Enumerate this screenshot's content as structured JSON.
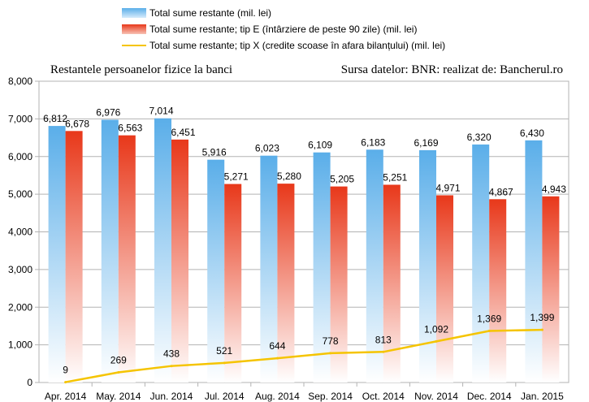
{
  "chart_data": {
    "type": "bar",
    "categories": [
      "Apr. 2014",
      "May. 2014",
      "Jun. 2014",
      "Jul. 2014",
      "Aug. 2014",
      "Sep. 2014",
      "Oct. 2014",
      "Nov. 2014",
      "Dec. 2014",
      "Jan. 2015"
    ],
    "series": [
      {
        "name": "Total sume restante (mil. lei)",
        "kind": "bar",
        "color": "#5aaee9",
        "values": [
          6812,
          6976,
          7014,
          5916,
          6023,
          6109,
          6183,
          6169,
          6320,
          6430
        ],
        "labels": [
          "6,812",
          "6,976",
          "7,014",
          "5,916",
          "6,023",
          "6,109",
          "6,183",
          "6,169",
          "6,320",
          "6,430"
        ]
      },
      {
        "name": "Total sume restante; tip E (întârziere de peste 90 zile) (mil. lei)",
        "kind": "bar",
        "color": "#e8381a",
        "values": [
          6678,
          6563,
          6451,
          5271,
          5280,
          5205,
          5251,
          4971,
          4867,
          4943
        ],
        "labels": [
          "6,678",
          "6,563",
          "6,451",
          "5,271",
          "5,280",
          "5,205",
          "5,251",
          "4,971",
          "4,867",
          "4,943"
        ]
      },
      {
        "name": "Total sume restante; tip X (credite scoase în afara bilanțului) (mil. lei)",
        "kind": "line",
        "color": "#f5c400",
        "values": [
          9,
          269,
          438,
          521,
          644,
          778,
          813,
          1092,
          1369,
          1399
        ],
        "labels": [
          "9",
          "269",
          "438",
          "521",
          "644",
          "778",
          "813",
          "1,092",
          "1,369",
          "1,399"
        ]
      }
    ],
    "ylim": [
      0,
      8000
    ],
    "yticks": [
      0,
      1000,
      2000,
      3000,
      4000,
      5000,
      6000,
      7000,
      8000
    ],
    "ytick_labels": [
      "0",
      "1,000",
      "2,000",
      "3,000",
      "4,000",
      "5,000",
      "6,000",
      "7,000",
      "8,000"
    ],
    "grid": true,
    "legend_position": "top",
    "title_left": "Restantele persoanelor fizice la banci",
    "title_right": "Sursa datelor: BNR: realizat de: Bancherul.ro"
  }
}
